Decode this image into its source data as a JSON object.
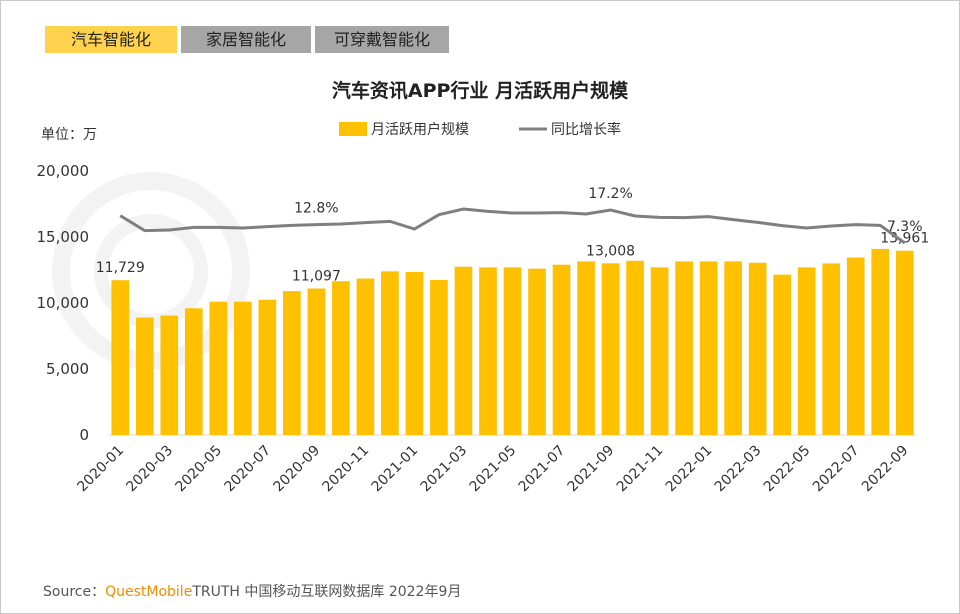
{
  "tabs": [
    "汽车智能化",
    "家居智能化",
    "可穿戴智能化"
  ],
  "source": {
    "prefix": "Source：",
    "brand": "QuestMobile",
    "text": "TRUTH 中国移动互联网数据库 2022年9月"
  },
  "chart_data": {
    "type": "bar",
    "title": "汽车资讯APP行业 月活跃用户规模",
    "y_label": "单位：万",
    "categories": [
      "2020-01",
      null,
      "2020-03",
      null,
      "2020-05",
      null,
      "2020-07",
      null,
      "2020-09",
      null,
      "2020-11",
      null,
      "2021-01",
      null,
      "2021-03",
      null,
      "2021-05",
      null,
      "2021-07",
      null,
      "2021-09",
      null,
      "2021-11",
      null,
      "2022-01",
      null,
      "2022-03",
      null,
      "2022-05",
      null,
      "2022-07",
      null,
      "2022-09"
    ],
    "series": [
      {
        "name": "月活跃用户规模",
        "color": "#ffc000",
        "values": [
          11729,
          8900,
          9050,
          9600,
          10100,
          10100,
          10250,
          10900,
          11097,
          11650,
          11850,
          12400,
          12350,
          11750,
          12750,
          12700,
          12700,
          12600,
          12900,
          13150,
          13008,
          13200,
          12700,
          13150,
          13150,
          13150,
          13050,
          12150,
          12700,
          13000,
          13450,
          14100,
          13961
        ],
        "value_labels": [
          "11,729",
          null,
          null,
          null,
          null,
          null,
          null,
          null,
          "11,097",
          null,
          null,
          null,
          null,
          null,
          null,
          null,
          null,
          null,
          null,
          null,
          "13,008",
          null,
          null,
          null,
          null,
          null,
          null,
          null,
          null,
          null,
          null,
          null,
          "13,961"
        ]
      },
      {
        "name": "同比增长率",
        "type": "line",
        "color": "#7f7f7f",
        "values": [
          15.5,
          11.0,
          11.2,
          12.0,
          12.0,
          11.8,
          12.2,
          12.6,
          12.8,
          13.0,
          13.4,
          13.8,
          11.5,
          15.8,
          17.5,
          16.8,
          16.3,
          16.3,
          16.4,
          16.0,
          17.2,
          15.4,
          15.0,
          14.9,
          15.2,
          14.3,
          13.5,
          12.5,
          11.8,
          12.4,
          12.8,
          12.6,
          7.3
        ],
        "value_labels": [
          null,
          null,
          null,
          null,
          null,
          null,
          null,
          null,
          "12.8%",
          null,
          null,
          null,
          null,
          null,
          null,
          null,
          null,
          null,
          null,
          null,
          "17.2%",
          null,
          null,
          null,
          null,
          null,
          null,
          null,
          null,
          null,
          null,
          null,
          "7.3%"
        ]
      }
    ],
    "ylim": [
      0,
      20000
    ],
    "yticks": [
      0,
      {
        "value": 5000,
        "label": "5,000"
      },
      {
        "value": 10000,
        "label": "10,000"
      },
      {
        "value": 15000,
        "label": "15,000"
      },
      {
        "value": 20000,
        "label": "20,000"
      }
    ],
    "grid": false,
    "legend": "top"
  }
}
